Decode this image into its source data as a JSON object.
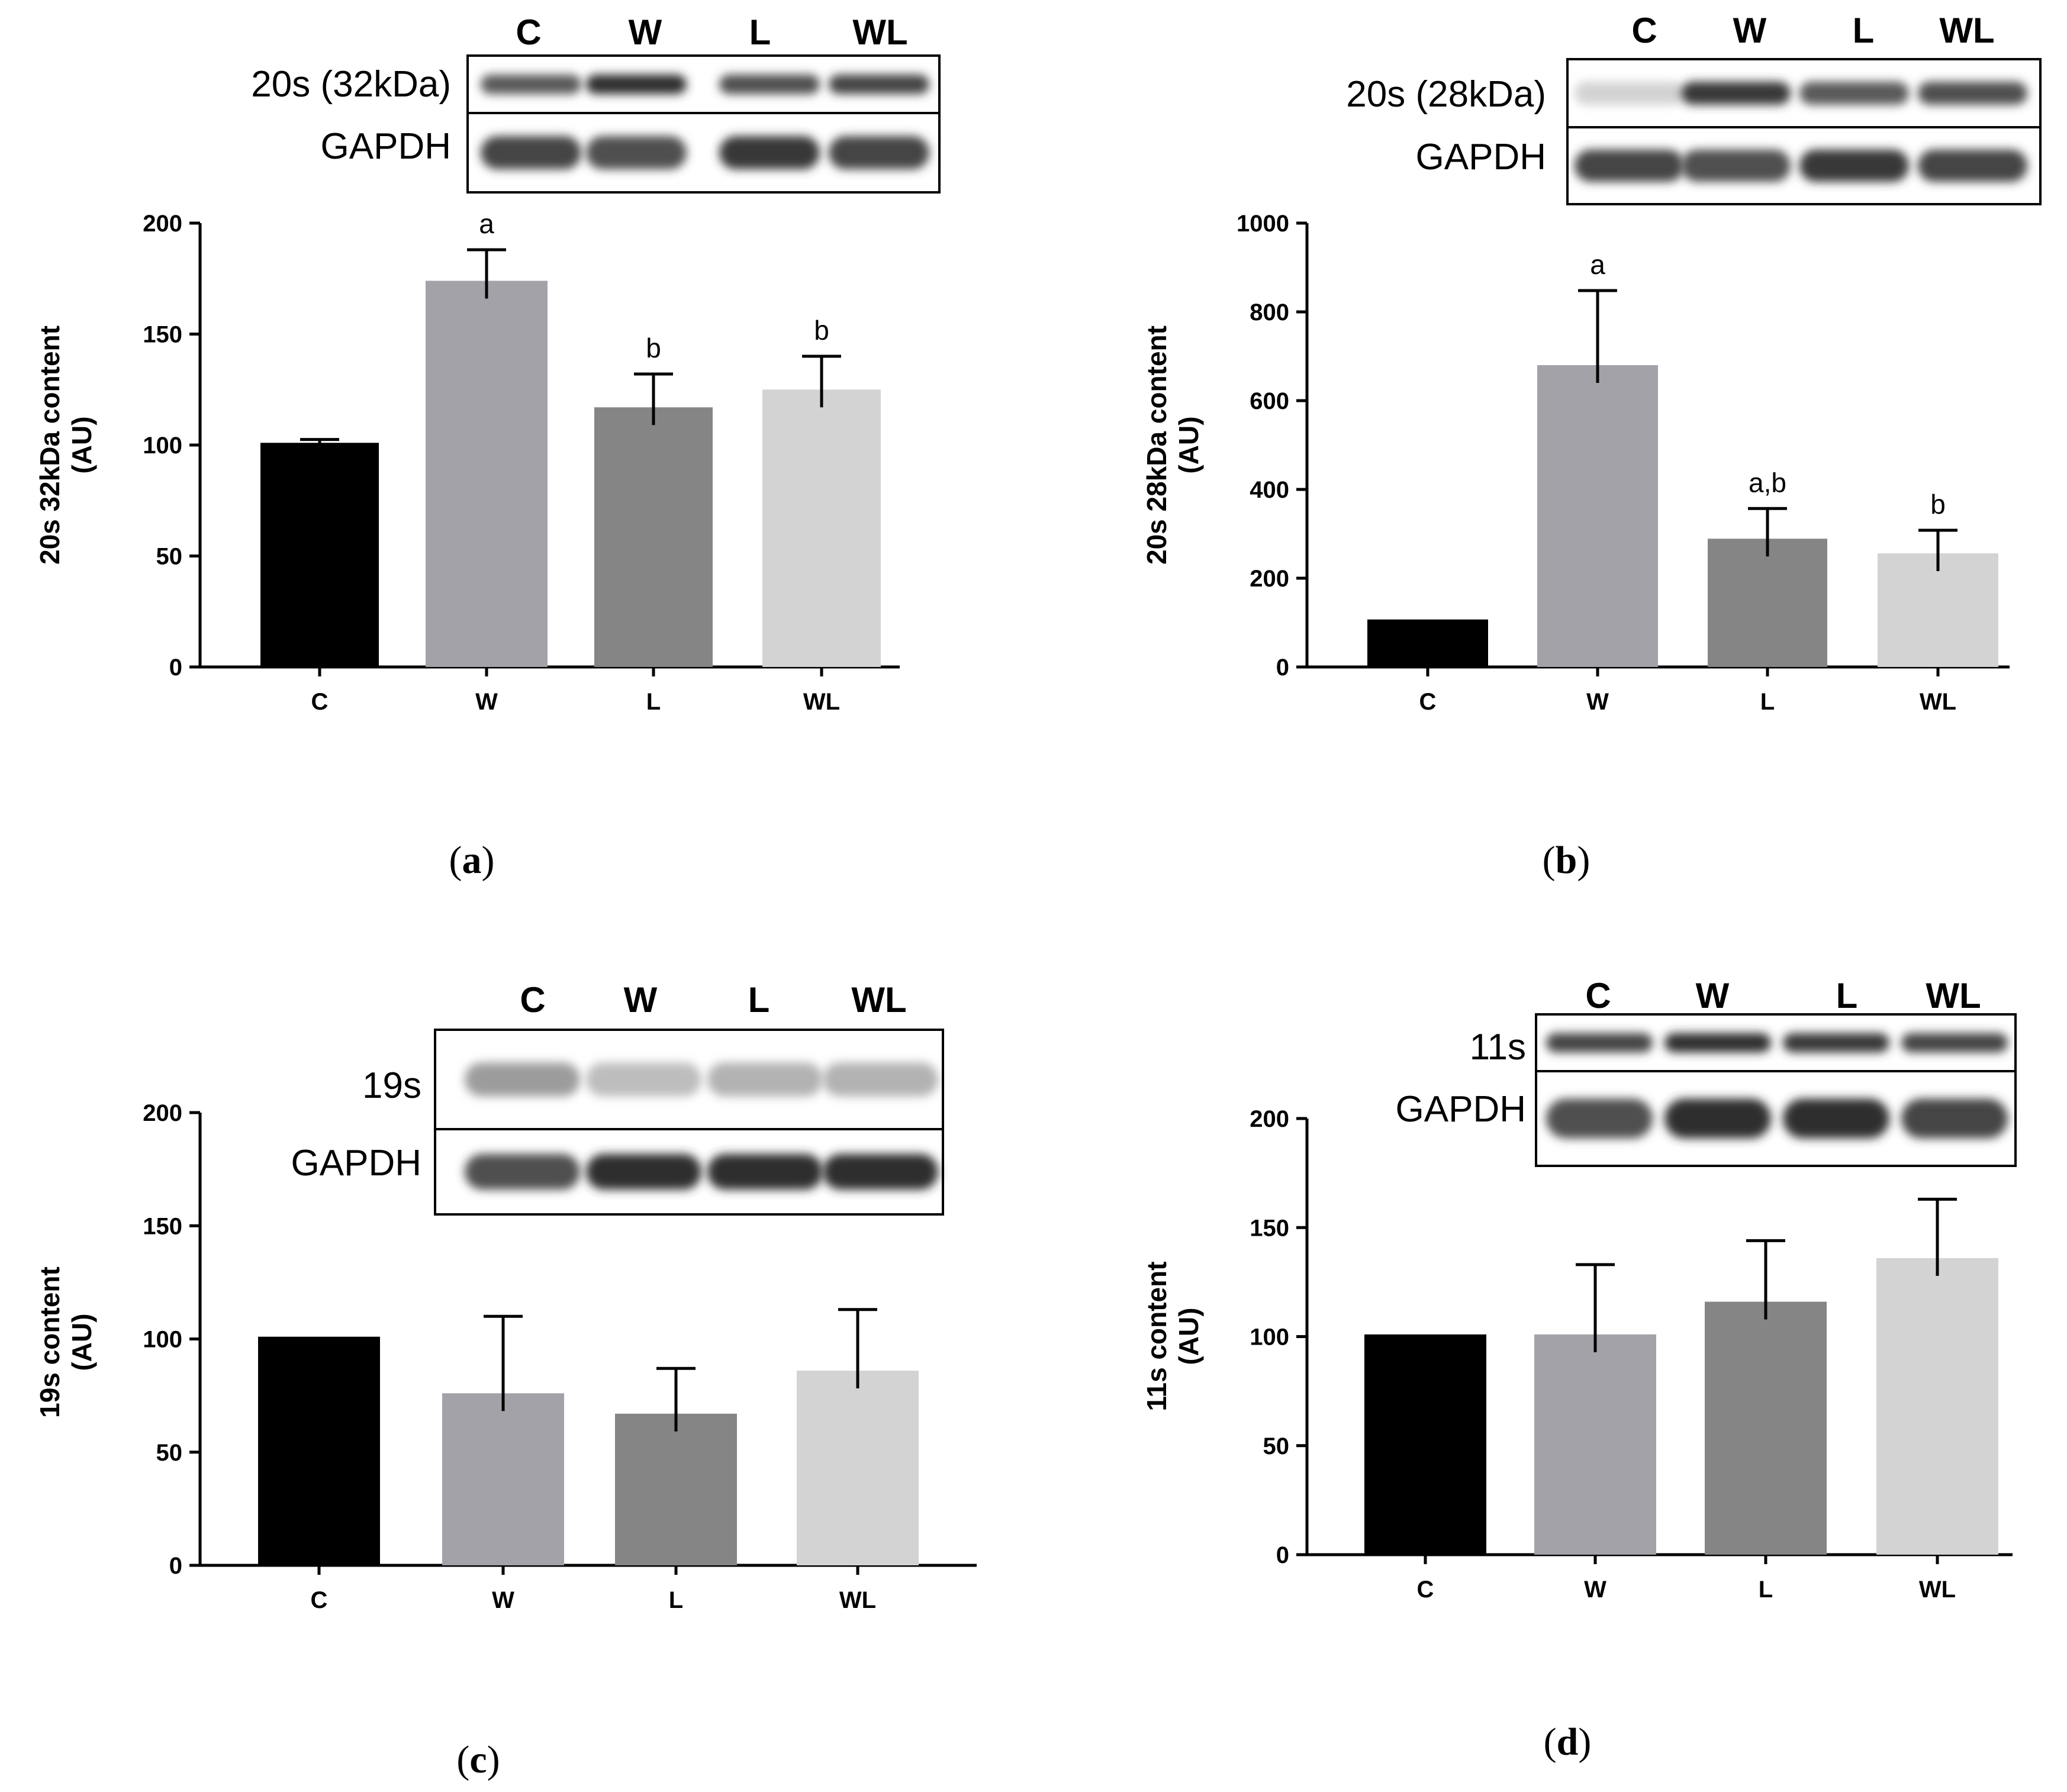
{
  "chart_data": [
    {
      "panel": "a",
      "type": "bar",
      "categories": [
        "C",
        "W",
        "L",
        "WL"
      ],
      "values": [
        101,
        174,
        117,
        125
      ],
      "errors": [
        1.5,
        14,
        15,
        15
      ],
      "annotations": [
        "",
        "a",
        "b",
        "b"
      ],
      "ylabel": [
        "20s 32kDa content",
        "(AU)"
      ],
      "ylim": [
        0,
        200
      ],
      "yticks": [
        0,
        50,
        100,
        150,
        200
      ],
      "colors": [
        "#000000",
        "#a2a2a8",
        "#858585",
        "#d3d3d3"
      ],
      "blot": {
        "lanes": [
          "C",
          "W",
          "L",
          "WL"
        ],
        "rows": [
          {
            "label": "20s (32kDa)",
            "intensity": [
              0.75,
              0.95,
              0.8,
              0.85
            ]
          },
          {
            "label": "GAPDH",
            "intensity": [
              0.85,
              0.8,
              0.9,
              0.85
            ]
          }
        ]
      }
    },
    {
      "panel": "b",
      "type": "bar",
      "categories": [
        "C",
        "W",
        "L",
        "WL"
      ],
      "values": [
        107,
        680,
        289,
        256
      ],
      "errors": [
        0,
        168,
        68,
        52
      ],
      "annotations": [
        "",
        "a",
        "a,b",
        "b"
      ],
      "ylabel": [
        "20s 28kDa content",
        "(AU)"
      ],
      "ylim": [
        0,
        1000
      ],
      "yticks": [
        0,
        200,
        400,
        600,
        800,
        1000
      ],
      "colors": [
        "#000000",
        "#a2a2a8",
        "#858585",
        "#d3d3d3"
      ],
      "blot": {
        "lanes": [
          "C",
          "W",
          "L",
          "WL"
        ],
        "rows": [
          {
            "label": "20s (28kDa)",
            "intensity": [
              0.2,
              0.9,
              0.75,
              0.8
            ]
          },
          {
            "label": "GAPDH",
            "intensity": [
              0.85,
              0.8,
              0.9,
              0.85
            ]
          }
        ]
      }
    },
    {
      "panel": "c",
      "type": "bar",
      "categories": [
        "C",
        "W",
        "L",
        "WL"
      ],
      "values": [
        101,
        76,
        67,
        86
      ],
      "errors": [
        0,
        34,
        20,
        27
      ],
      "annotations": [
        "",
        "",
        "",
        ""
      ],
      "ylabel": [
        "19s content",
        "(AU)"
      ],
      "ylim": [
        0,
        200
      ],
      "yticks": [
        0,
        50,
        100,
        150,
        200
      ],
      "colors": [
        "#000000",
        "#a2a2a8",
        "#858585",
        "#d3d3d3"
      ],
      "blot": {
        "lanes": [
          "C",
          "W",
          "L",
          "WL"
        ],
        "rows": [
          {
            "label": "19s",
            "intensity": [
              0.45,
              0.3,
              0.35,
              0.35
            ]
          },
          {
            "label": "GAPDH",
            "intensity": [
              0.8,
              0.95,
              0.95,
              0.95
            ]
          }
        ]
      }
    },
    {
      "panel": "d",
      "type": "bar",
      "categories": [
        "C",
        "W",
        "L",
        "WL"
      ],
      "values": [
        101,
        101,
        116,
        136
      ],
      "errors": [
        0,
        32,
        28,
        27
      ],
      "annotations": [
        "",
        "",
        "",
        ""
      ],
      "ylabel": [
        "11s content",
        "(AU)"
      ],
      "ylim": [
        0,
        200
      ],
      "yticks": [
        0,
        50,
        100,
        150,
        200
      ],
      "colors": [
        "#000000",
        "#a2a2a8",
        "#858585",
        "#d3d3d3"
      ],
      "blot": {
        "lanes": [
          "C",
          "W",
          "L",
          "WL"
        ],
        "rows": [
          {
            "label": "11s",
            "intensity": [
              0.85,
              0.95,
              0.9,
              0.85
            ]
          },
          {
            "label": "GAPDH",
            "intensity": [
              0.8,
              0.95,
              0.95,
              0.85
            ]
          }
        ]
      }
    }
  ],
  "panel_labels": [
    {
      "open": "(",
      "letter": "a",
      "close": ")"
    },
    {
      "open": "(",
      "letter": "b",
      "close": ")"
    },
    {
      "open": "(",
      "letter": "c",
      "close": ")"
    },
    {
      "open": "(",
      "letter": "d",
      "close": ")"
    }
  ]
}
